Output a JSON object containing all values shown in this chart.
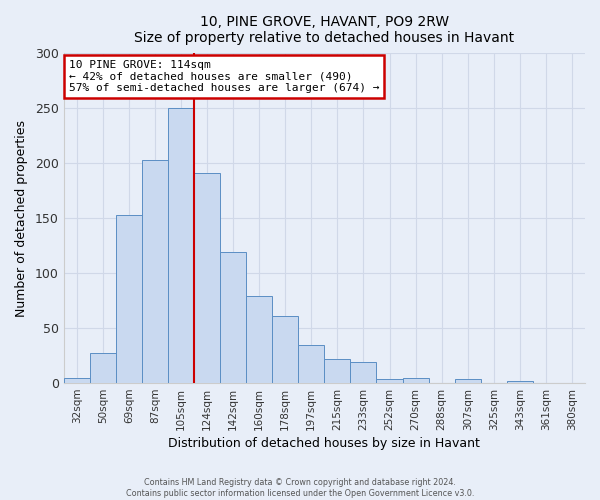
{
  "title": "10, PINE GROVE, HAVANT, PO9 2RW",
  "subtitle": "Size of property relative to detached houses in Havant",
  "xlabel": "Distribution of detached houses by size in Havant",
  "ylabel": "Number of detached properties",
  "bar_labels": [
    "32sqm",
    "50sqm",
    "69sqm",
    "87sqm",
    "105sqm",
    "124sqm",
    "142sqm",
    "160sqm",
    "178sqm",
    "197sqm",
    "215sqm",
    "233sqm",
    "252sqm",
    "270sqm",
    "288sqm",
    "307sqm",
    "325sqm",
    "343sqm",
    "361sqm",
    "380sqm"
  ],
  "bar_values": [
    5,
    27,
    153,
    203,
    250,
    191,
    119,
    79,
    61,
    35,
    22,
    19,
    4,
    5,
    0,
    4,
    0,
    2,
    0,
    0
  ],
  "bar_color": "#c9d9f0",
  "bar_edge_color": "#5b8ec4",
  "property_line_label": "10 PINE GROVE: 114sqm",
  "annotation_line1": "← 42% of detached houses are smaller (490)",
  "annotation_line2": "57% of semi-detached houses are larger (674) →",
  "ylim": [
    0,
    300
  ],
  "yticks": [
    0,
    50,
    100,
    150,
    200,
    250,
    300
  ],
  "annotation_box_color": "#ffffff",
  "annotation_box_edge": "#cc0000",
  "vline_color": "#cc0000",
  "vline_x": 4.5,
  "footer_line1": "Contains HM Land Registry data © Crown copyright and database right 2024.",
  "footer_line2": "Contains public sector information licensed under the Open Government Licence v3.0.",
  "bg_color": "#e8eef8",
  "grid_color": "#d0d8e8"
}
